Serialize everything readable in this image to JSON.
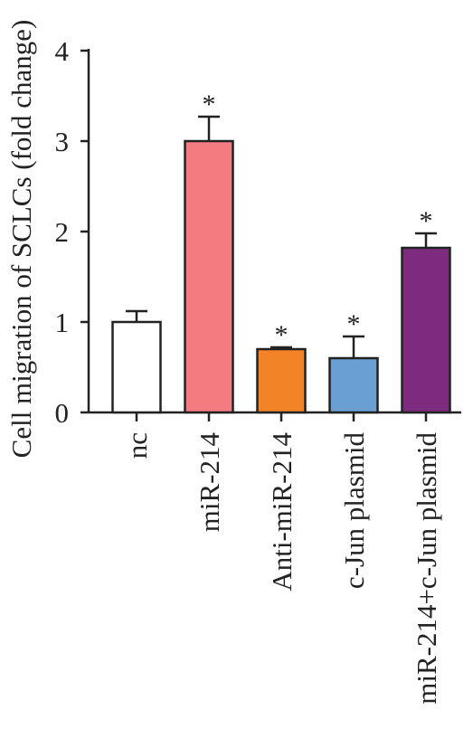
{
  "chart_data": {
    "type": "bar",
    "title": "",
    "ylabel": "Cell migration of SCLCs (fold change)",
    "xlabel": "",
    "ylim": [
      0,
      4
    ],
    "yticks": [
      0,
      1,
      2,
      3,
      4
    ],
    "ytick_labels": [
      "0",
      "1",
      "2",
      "3",
      "4"
    ],
    "categories": [
      "nc",
      "miR-214",
      "Anti-miR-214",
      "c-Jun plasmid",
      "miR-214+c-Jun plasmid"
    ],
    "values": [
      1.0,
      3.0,
      0.7,
      0.6,
      1.82
    ],
    "errors": [
      0.12,
      0.27,
      0.02,
      0.24,
      0.16
    ],
    "significance": [
      "",
      "*",
      "*",
      "*",
      "*"
    ],
    "colors": [
      "#ffffff",
      "#f47c80",
      "#f28326",
      "#6a9fd3",
      "#7e2a7e"
    ],
    "grid": false
  }
}
